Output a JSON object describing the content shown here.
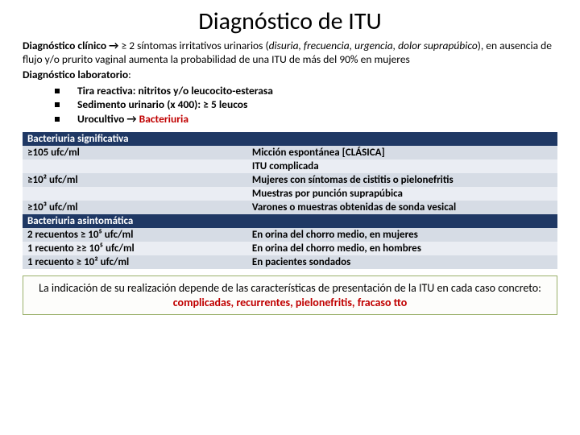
{
  "title": "Diagnóstico de ITU",
  "clin": {
    "lead_bold": "Diagnóstico clínico",
    "arrow": " → ",
    "ge": "≥ 2 síntomas irritativos urinarios (",
    "sym": "disuria, frecuencia, urgencia, dolor suprapúbico",
    "tail": "), en ausencia de  flujo y/o prurito vaginal  aumenta la probabilidad de una ITU de más del 90% en mujeres"
  },
  "lab": {
    "lead": "Diagnóstico laboratorio",
    "colon": ":",
    "b1a": "Tira reactiva",
    "b1b": ": nitritos y/o leucocito-esterasa",
    "b2a": "Sedimento urinario",
    "b2b": " (x 400): ≥ 5 leucos",
    "b3a": "Urocultivo",
    "b3arrow": " → ",
    "b3b": "Bacteriuria"
  },
  "table": {
    "h1": "Bacteriuria significativa",
    "r1l": "≥105 ufc/ml",
    "r1r1": "Micción espontánea  [CLÁSICA]",
    "r1r2": "ITU complicada",
    "r2l": " ≥10² ufc/ml",
    "r2r1": "Mujeres con síntomas de cistitis o pielonefritis",
    "r2r2": "Muestras por punción suprapúbica",
    "r3l": "≥10³ ufc/ml",
    "r3r": "Varones o muestras obtenidas de sonda vesical",
    "h2": "Bacteriuria asintomática",
    "r4l": "2 recuentos ≥ 10⁵ ufc/ml",
    "r4r": "En orina del chorro medio, en mujeres",
    "r5l": "1 recuento ≥≥ 10⁵ ufc/ml",
    "r5r": "En orina del chorro medio, en hombres",
    "r6l": "1  recuento  ≥ 10² ufc/ml",
    "r6r": "En pacientes sondados"
  },
  "foot": {
    "a": "La indicación de su realización depende de las características de presentación de la ITU en cada caso concreto: ",
    "b": "complicadas, recurrentes, pielonefritis, fracaso tto"
  },
  "colors": {
    "header_bg": "#1f3864",
    "band_a": "#d6dce5",
    "band_b": "#eaedf3",
    "red": "#c00000",
    "box_border": "#9ab06a"
  }
}
